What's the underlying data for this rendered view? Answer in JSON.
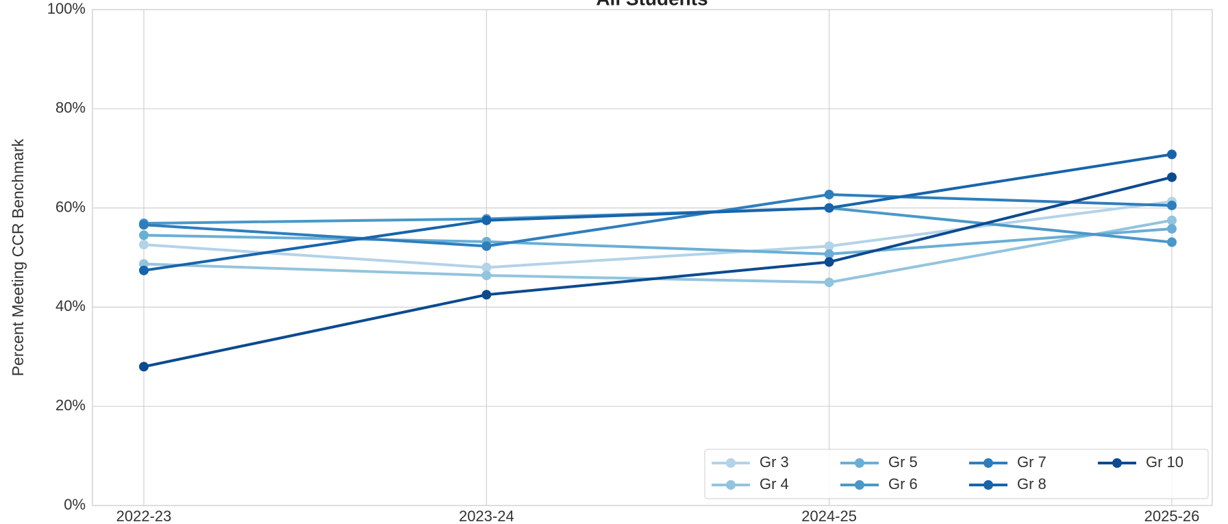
{
  "chart_data": {
    "type": "line",
    "title": "All Students",
    "y_label": "Percent Meeting CCR Benchmark",
    "categories": [
      "2022-23",
      "2023-24",
      "2024-25",
      "2025-26"
    ],
    "ylim": [
      0,
      100
    ],
    "yticks": [
      {
        "value": 0,
        "label": "0%"
      },
      {
        "value": 20,
        "label": "20%"
      },
      {
        "value": 40,
        "label": "40%"
      },
      {
        "value": 60,
        "label": "60%"
      },
      {
        "value": 80,
        "label": "80%"
      },
      {
        "value": 100,
        "label": "100%"
      }
    ],
    "grid": true,
    "legend": "lower right",
    "legend_columns": 4,
    "series": [
      {
        "name": "Gr 3",
        "color": "#b3d3e8",
        "values": [
          52.6,
          48.0,
          52.3,
          61.3
        ]
      },
      {
        "name": "Gr 4",
        "color": "#93c4de",
        "values": [
          48.7,
          46.4,
          45.0,
          57.5
        ]
      },
      {
        "name": "Gr 5",
        "color": "#6aaed6",
        "values": [
          54.5,
          53.2,
          50.7,
          55.8
        ]
      },
      {
        "name": "Gr 6",
        "color": "#4a98c9",
        "values": [
          56.9,
          57.8,
          60.0,
          53.1
        ]
      },
      {
        "name": "Gr 7",
        "color": "#2e7ebc",
        "values": [
          56.6,
          52.3,
          62.7,
          60.5
        ]
      },
      {
        "name": "Gr 8",
        "color": "#1764ab",
        "values": [
          47.4,
          57.5,
          60.0,
          70.8
        ]
      },
      {
        "name": "Gr 10",
        "color": "#0b4a8f",
        "values": [
          28.0,
          42.5,
          49.1,
          66.2
        ]
      }
    ]
  }
}
